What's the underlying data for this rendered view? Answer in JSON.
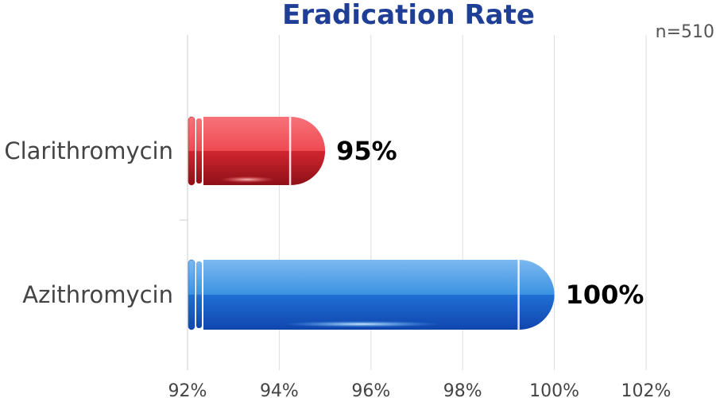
{
  "chart_data": {
    "type": "bar",
    "orientation": "horizontal",
    "title": "Eradication Rate",
    "note": "n=510",
    "categories": [
      "Clarithromycin",
      "Azithromycin"
    ],
    "values": [
      95,
      100
    ],
    "value_labels": [
      "95%",
      "100%"
    ],
    "xlim": [
      92,
      102
    ],
    "xticks": [
      92,
      94,
      96,
      98,
      100,
      102
    ],
    "tick_labels": [
      "92%",
      "94%",
      "96%",
      "98%",
      "100%",
      "102%"
    ],
    "grid": true,
    "legend": "none",
    "colors": {
      "Clarithromycin": "#e0303a",
      "Azithromycin": "#2b7fd8",
      "title": "#1f3f96"
    }
  }
}
